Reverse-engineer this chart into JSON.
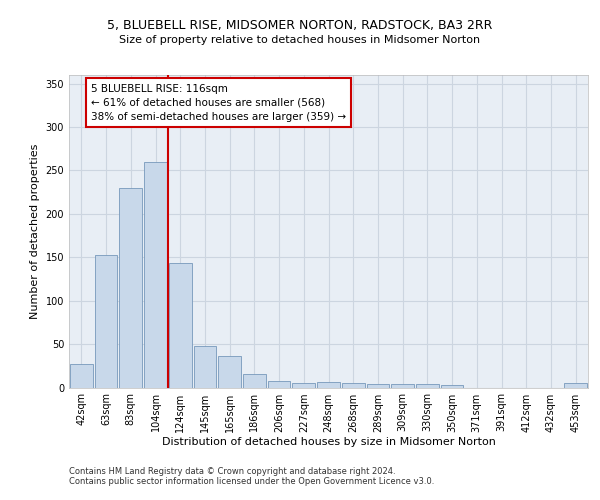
{
  "title1": "5, BLUEBELL RISE, MIDSOMER NORTON, RADSTOCK, BA3 2RR",
  "title2": "Size of property relative to detached houses in Midsomer Norton",
  "xlabel": "Distribution of detached houses by size in Midsomer Norton",
  "ylabel": "Number of detached properties",
  "footer1": "Contains HM Land Registry data © Crown copyright and database right 2024.",
  "footer2": "Contains public sector information licensed under the Open Government Licence v3.0.",
  "categories": [
    "42sqm",
    "63sqm",
    "83sqm",
    "104sqm",
    "124sqm",
    "145sqm",
    "165sqm",
    "186sqm",
    "206sqm",
    "227sqm",
    "248sqm",
    "268sqm",
    "289sqm",
    "309sqm",
    "330sqm",
    "350sqm",
    "371sqm",
    "391sqm",
    "412sqm",
    "432sqm",
    "453sqm"
  ],
  "values": [
    27,
    153,
    230,
    260,
    143,
    48,
    36,
    15,
    7,
    5,
    6,
    5,
    4,
    4,
    4,
    3,
    0,
    0,
    0,
    0,
    5
  ],
  "bar_color": "#c8d8ea",
  "bar_edge_color": "#7799bb",
  "vline_color": "#cc0000",
  "vline_x": 3.5,
  "annotation_text": "5 BLUEBELL RISE: 116sqm\n← 61% of detached houses are smaller (568)\n38% of semi-detached houses are larger (359) →",
  "annotation_box_facecolor": "#ffffff",
  "annotation_box_edgecolor": "#cc0000",
  "ylim": [
    0,
    360
  ],
  "yticks": [
    0,
    50,
    100,
    150,
    200,
    250,
    300,
    350
  ],
  "grid_color": "#ccd5e0",
  "plot_bg_color": "#e8eef5",
  "title1_fontsize": 9,
  "title2_fontsize": 8,
  "xlabel_fontsize": 8,
  "ylabel_fontsize": 8,
  "footer_fontsize": 6,
  "tick_fontsize": 7,
  "annot_fontsize": 7.5
}
